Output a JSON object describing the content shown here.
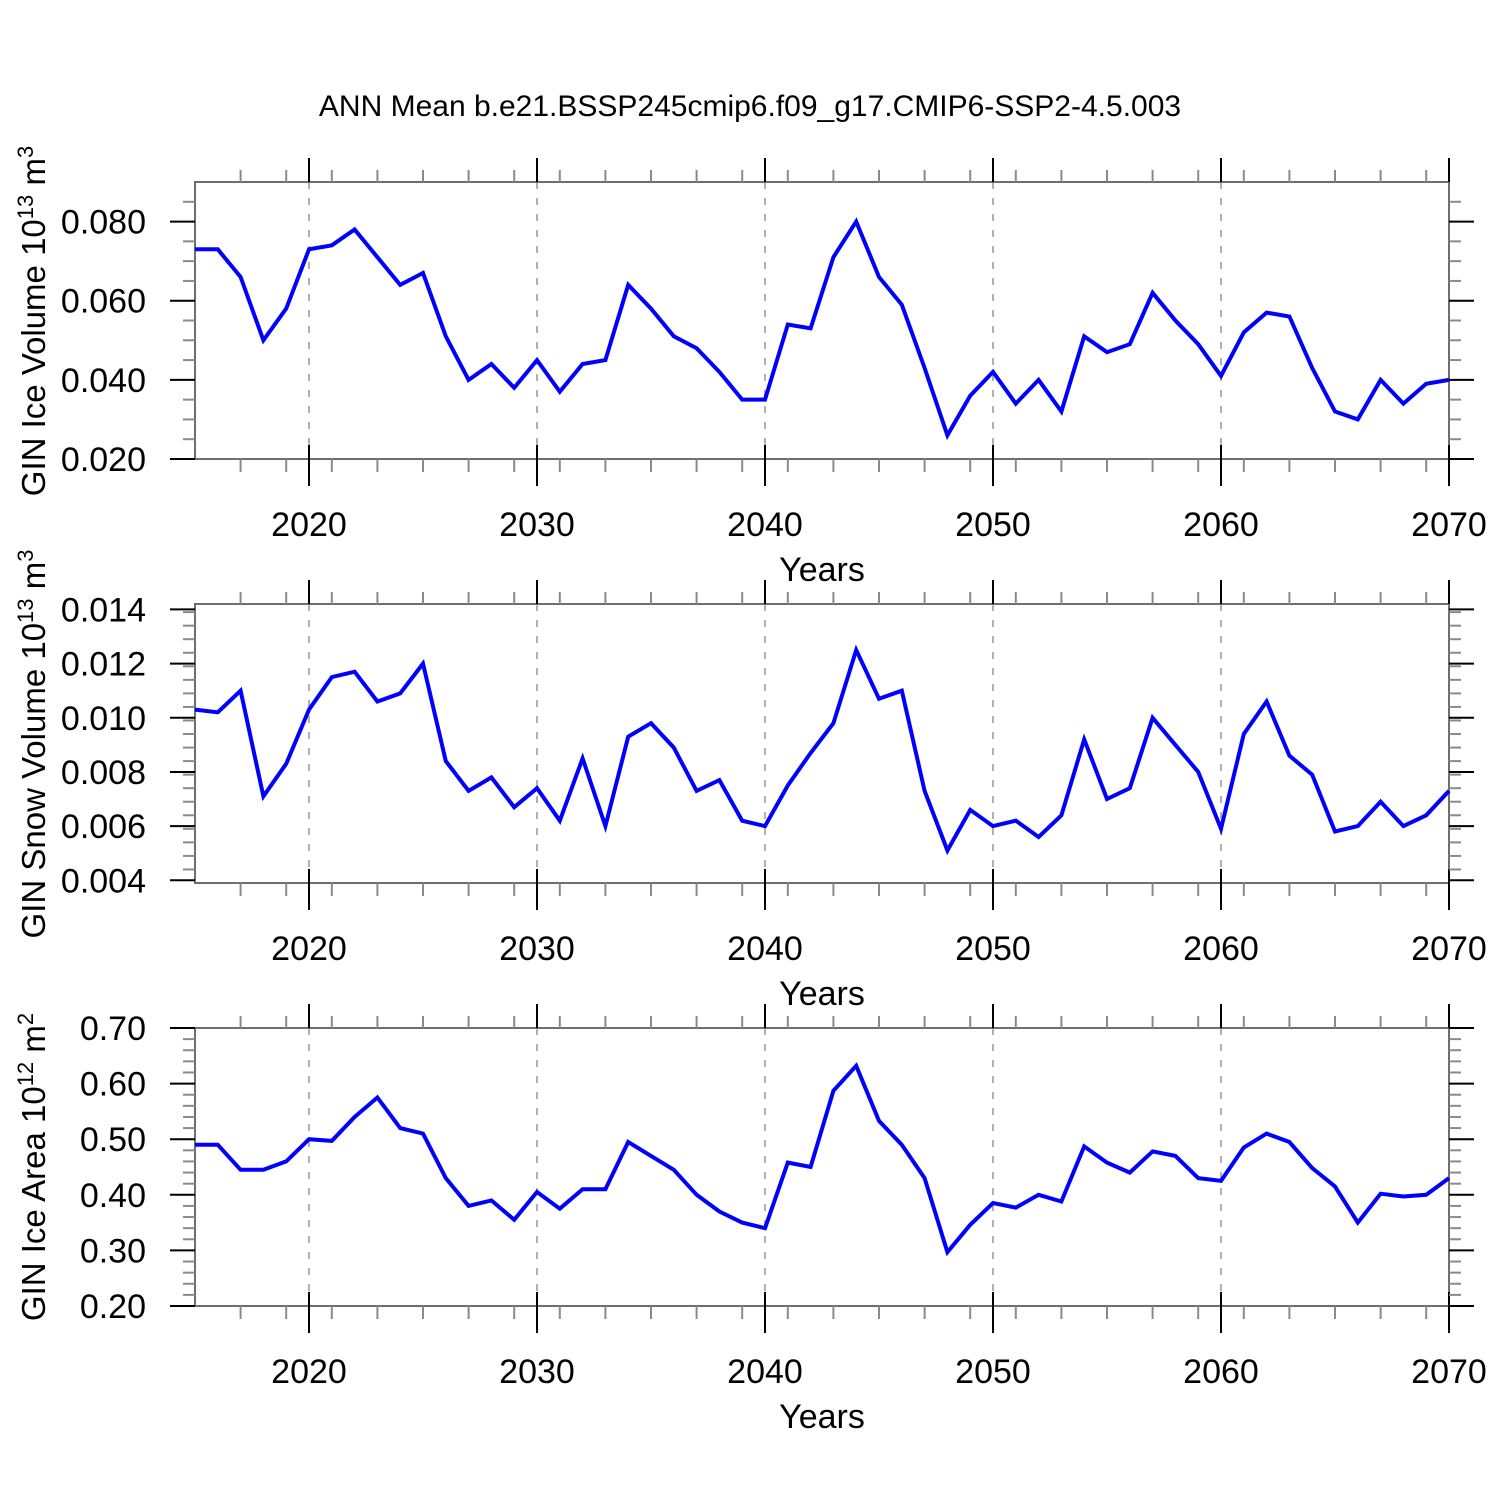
{
  "title": "ANN Mean b.e21.BSSP245cmip6.f09_g17.CMIP6-SSP2-4.5.003",
  "colors": {
    "line": "#0000ff",
    "frame": "#6e6e6e",
    "major_tick": "#000000",
    "minor_tick": "#8a8a8a",
    "grid": "#b0b0b0",
    "text": "#000000",
    "background": "#ffffff"
  },
  "chart_data": [
    {
      "type": "line",
      "name": "gin-ice-volume",
      "ylabel": "GIN Ice Volume 10^13 m^3",
      "ylabel_parts": [
        {
          "t": "GIN Ice Volume 10"
        },
        {
          "t": "13",
          "sup": true
        },
        {
          "t": " m"
        },
        {
          "t": "3",
          "sup": true
        }
      ],
      "xlabel": "Years",
      "xlim": [
        2015,
        2070
      ],
      "ylim": [
        0.02,
        0.09
      ],
      "grid_x": [
        2020,
        2030,
        2040,
        2050,
        2060
      ],
      "xticks": {
        "values": [
          2020,
          2030,
          2040,
          2050,
          2060,
          2070
        ],
        "labels": [
          "2020",
          "2030",
          "2040",
          "2050",
          "2060",
          "2070"
        ],
        "minor_step": 2
      },
      "yticks": {
        "values": [
          0.02,
          0.04,
          0.06,
          0.08
        ],
        "labels": [
          "0.020",
          "0.040",
          "0.060",
          "0.080"
        ],
        "minor_step": 0.005
      },
      "x": [
        2015,
        2016,
        2017,
        2018,
        2019,
        2020,
        2021,
        2022,
        2023,
        2024,
        2025,
        2026,
        2027,
        2028,
        2029,
        2030,
        2031,
        2032,
        2033,
        2034,
        2035,
        2036,
        2037,
        2038,
        2039,
        2040,
        2041,
        2042,
        2043,
        2044,
        2045,
        2046,
        2047,
        2048,
        2049,
        2050,
        2051,
        2052,
        2053,
        2054,
        2055,
        2056,
        2057,
        2058,
        2059,
        2060,
        2061,
        2062,
        2063,
        2064,
        2065,
        2066,
        2067,
        2068,
        2069,
        2070
      ],
      "values": [
        0.073,
        0.073,
        0.066,
        0.05,
        0.058,
        0.073,
        0.074,
        0.078,
        0.071,
        0.064,
        0.067,
        0.051,
        0.04,
        0.044,
        0.038,
        0.045,
        0.037,
        0.044,
        0.045,
        0.064,
        0.058,
        0.051,
        0.048,
        0.042,
        0.035,
        0.035,
        0.054,
        0.053,
        0.071,
        0.08,
        0.066,
        0.059,
        0.043,
        0.026,
        0.036,
        0.042,
        0.034,
        0.04,
        0.032,
        0.051,
        0.047,
        0.049,
        0.062,
        0.055,
        0.049,
        0.041,
        0.052,
        0.057,
        0.056,
        0.043,
        0.032,
        0.03,
        0.04,
        0.034,
        0.039,
        0.04
      ]
    },
    {
      "type": "line",
      "name": "gin-snow-volume",
      "ylabel": "GIN Snow Volume 10^13 m^3",
      "ylabel_parts": [
        {
          "t": "GIN Snow Volume 10"
        },
        {
          "t": "13",
          "sup": true
        },
        {
          "t": " m"
        },
        {
          "t": "3",
          "sup": true
        }
      ],
      "xlabel": "Years",
      "xlim": [
        2015,
        2070
      ],
      "ylim": [
        0.0039,
        0.0142
      ],
      "grid_x": [
        2020,
        2030,
        2040,
        2050,
        2060
      ],
      "xticks": {
        "values": [
          2020,
          2030,
          2040,
          2050,
          2060,
          2070
        ],
        "labels": [
          "2020",
          "2030",
          "2040",
          "2050",
          "2060",
          "2070"
        ],
        "minor_step": 2
      },
      "yticks": {
        "values": [
          0.004,
          0.006,
          0.008,
          0.01,
          0.012,
          0.014
        ],
        "labels": [
          "0.004",
          "0.006",
          "0.008",
          "0.010",
          "0.012",
          "0.014"
        ],
        "minor_step": 0.0005
      },
      "x": [
        2015,
        2016,
        2017,
        2018,
        2019,
        2020,
        2021,
        2022,
        2023,
        2024,
        2025,
        2026,
        2027,
        2028,
        2029,
        2030,
        2031,
        2032,
        2033,
        2034,
        2035,
        2036,
        2037,
        2038,
        2039,
        2040,
        2041,
        2042,
        2043,
        2044,
        2045,
        2046,
        2047,
        2048,
        2049,
        2050,
        2051,
        2052,
        2053,
        2054,
        2055,
        2056,
        2057,
        2058,
        2059,
        2060,
        2061,
        2062,
        2063,
        2064,
        2065,
        2066,
        2067,
        2068,
        2069,
        2070
      ],
      "values": [
        0.0103,
        0.0102,
        0.011,
        0.0071,
        0.0083,
        0.0103,
        0.0115,
        0.0117,
        0.0106,
        0.0109,
        0.012,
        0.0084,
        0.0073,
        0.0078,
        0.0067,
        0.0074,
        0.0062,
        0.0085,
        0.006,
        0.0093,
        0.0098,
        0.0089,
        0.0073,
        0.0077,
        0.0062,
        0.006,
        0.0075,
        0.0087,
        0.0098,
        0.0125,
        0.0107,
        0.011,
        0.0073,
        0.0051,
        0.0066,
        0.006,
        0.0062,
        0.0056,
        0.0064,
        0.0092,
        0.007,
        0.0074,
        0.01,
        0.009,
        0.008,
        0.0059,
        0.0094,
        0.0106,
        0.0086,
        0.0079,
        0.0058,
        0.006,
        0.0069,
        0.006,
        0.0064,
        0.0073
      ]
    },
    {
      "type": "line",
      "name": "gin-ice-area",
      "ylabel": "GIN Ice Area 10^12 m^2",
      "ylabel_parts": [
        {
          "t": "GIN Ice Area 10"
        },
        {
          "t": "12",
          "sup": true
        },
        {
          "t": " m"
        },
        {
          "t": "2",
          "sup": true
        }
      ],
      "xlabel": "Years",
      "xlim": [
        2015,
        2070
      ],
      "ylim": [
        0.2,
        0.7
      ],
      "grid_x": [
        2020,
        2030,
        2040,
        2050,
        2060
      ],
      "xticks": {
        "values": [
          2020,
          2030,
          2040,
          2050,
          2060,
          2070
        ],
        "labels": [
          "2020",
          "2030",
          "2040",
          "2050",
          "2060",
          "2070"
        ],
        "minor_step": 2
      },
      "yticks": {
        "values": [
          0.2,
          0.3,
          0.4,
          0.5,
          0.6,
          0.7
        ],
        "labels": [
          "0.20",
          "0.30",
          "0.40",
          "0.50",
          "0.60",
          "0.70"
        ],
        "minor_step": 0.02
      },
      "x": [
        2015,
        2016,
        2017,
        2018,
        2019,
        2020,
        2021,
        2022,
        2023,
        2024,
        2025,
        2026,
        2027,
        2028,
        2029,
        2030,
        2031,
        2032,
        2033,
        2034,
        2035,
        2036,
        2037,
        2038,
        2039,
        2040,
        2041,
        2042,
        2043,
        2044,
        2045,
        2046,
        2047,
        2048,
        2049,
        2050,
        2051,
        2052,
        2053,
        2054,
        2055,
        2056,
        2057,
        2058,
        2059,
        2060,
        2061,
        2062,
        2063,
        2064,
        2065,
        2066,
        2067,
        2068,
        2069,
        2070
      ],
      "values": [
        0.49,
        0.49,
        0.445,
        0.445,
        0.46,
        0.5,
        0.497,
        0.54,
        0.575,
        0.52,
        0.51,
        0.43,
        0.38,
        0.39,
        0.355,
        0.405,
        0.375,
        0.41,
        0.41,
        0.495,
        0.47,
        0.445,
        0.4,
        0.37,
        0.35,
        0.34,
        0.458,
        0.45,
        0.587,
        0.632,
        0.533,
        0.49,
        0.43,
        0.297,
        0.346,
        0.385,
        0.377,
        0.4,
        0.388,
        0.487,
        0.458,
        0.44,
        0.478,
        0.47,
        0.43,
        0.425,
        0.485,
        0.51,
        0.495,
        0.448,
        0.415,
        0.35,
        0.402,
        0.397,
        0.4,
        0.43
      ]
    }
  ]
}
